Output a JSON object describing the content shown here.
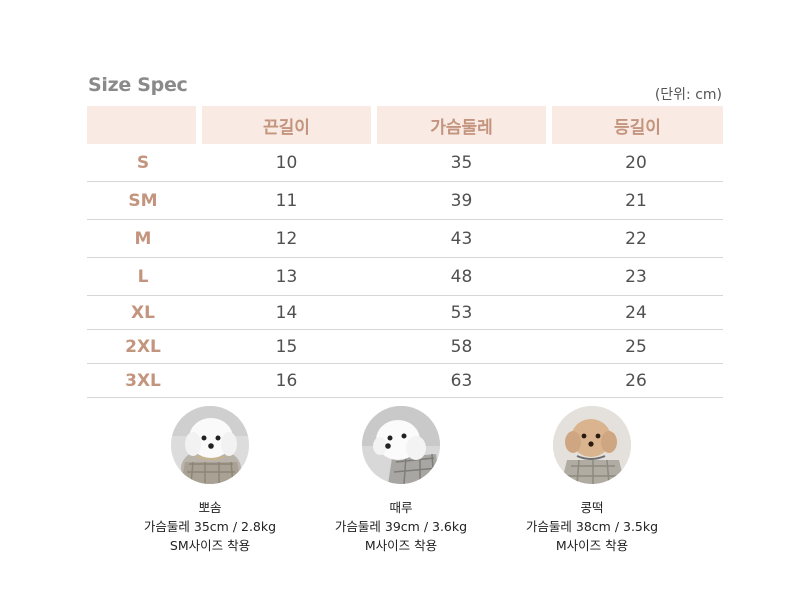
{
  "title": "Size Spec",
  "unit": "(단위: cm)",
  "table": {
    "headers": [
      "",
      "끈길이",
      "가슴둘레",
      "등길이"
    ],
    "rows": [
      {
        "size": "S",
        "strap": "10",
        "chest": "35",
        "back": "20"
      },
      {
        "size": "SM",
        "strap": "11",
        "chest": "39",
        "back": "21"
      },
      {
        "size": "M",
        "strap": "12",
        "chest": "43",
        "back": "22"
      },
      {
        "size": "L",
        "strap": "13",
        "chest": "48",
        "back": "23"
      },
      {
        "size": "XL",
        "strap": "14",
        "chest": "53",
        "back": "24"
      },
      {
        "size": "2XL",
        "strap": "15",
        "chest": "58",
        "back": "25"
      },
      {
        "size": "3XL",
        "strap": "16",
        "chest": "63",
        "back": "26"
      }
    ]
  },
  "models": [
    {
      "name": "뽀솜",
      "measure": "가슴둘레 35cm / 2.8kg",
      "fit": "SM사이즈 착용"
    },
    {
      "name": "때루",
      "measure": "가슴둘레 39cm / 3.6kg",
      "fit": "M사이즈 착용"
    },
    {
      "name": "콩떡",
      "measure": "가슴둘레 38cm / 3.5kg",
      "fit": "M사이즈 착용"
    }
  ],
  "colors": {
    "header_bg": "#f9eae3",
    "accent": "#c4957e",
    "text": "#505050"
  }
}
